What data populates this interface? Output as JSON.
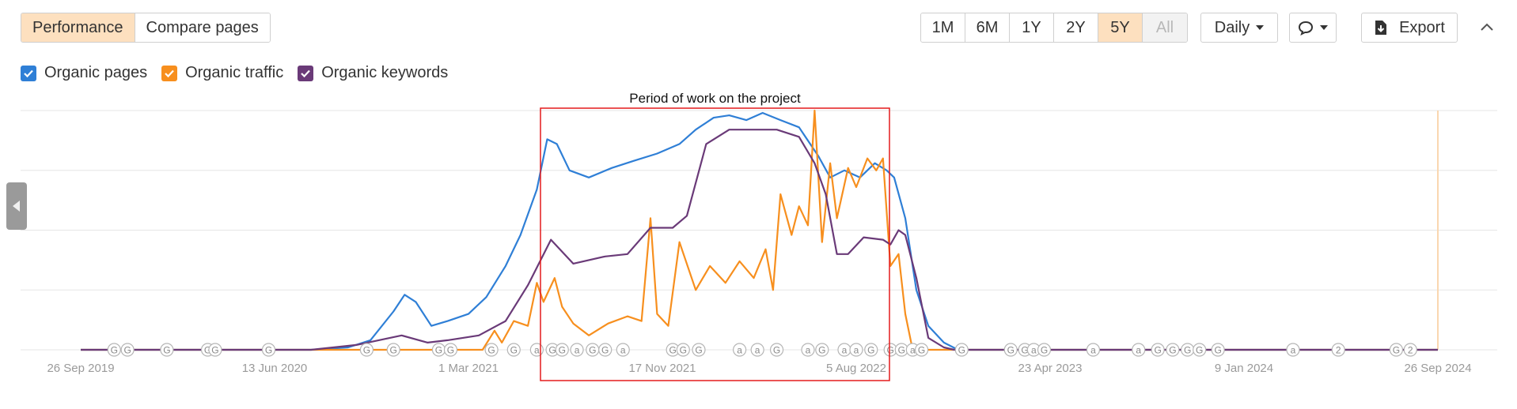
{
  "tabs": [
    {
      "label": "Performance",
      "active": true
    },
    {
      "label": "Compare pages",
      "active": false
    }
  ],
  "ranges": [
    {
      "label": "1M",
      "state": "normal"
    },
    {
      "label": "6M",
      "state": "normal"
    },
    {
      "label": "1Y",
      "state": "normal"
    },
    {
      "label": "2Y",
      "state": "normal"
    },
    {
      "label": "5Y",
      "state": "active"
    },
    {
      "label": "All",
      "state": "disabled"
    }
  ],
  "toolbar": {
    "interval_label": "Daily",
    "export_label": "Export",
    "comment_icon": "speech-bubble-icon",
    "export_icon": "download-icon",
    "collapse_icon": "chevron-up-icon"
  },
  "legend": [
    {
      "label": "Organic pages",
      "color": "#2f7fd6",
      "checked": true
    },
    {
      "label": "Organic traffic",
      "color": "#f78f1e",
      "checked": true
    },
    {
      "label": "Organic keywords",
      "color": "#6a3a78",
      "checked": true
    }
  ],
  "annotation": {
    "label": "Period of work on the project",
    "color": "#e41a1c",
    "from": "2021-04-10",
    "to": "2022-08-20"
  },
  "colors": {
    "accent_bg": "#fde0bf",
    "selection_box": "#e41a1c",
    "grid": "#e6e6e6"
  },
  "chart_data": {
    "type": "line",
    "x_ticks": [
      "26 Sep 2019",
      "13 Jun 2020",
      "1 Mar 2021",
      "17 Nov 2021",
      "5 Aug 2022",
      "23 Apr 2023",
      "9 Jan 2024",
      "26 Sep 2024"
    ],
    "x_range": [
      "2019-09-26",
      "2024-09-26"
    ],
    "y_range": [
      0,
      100
    ],
    "y_axis_labels_visible": false,
    "grid": "horizontal",
    "legend_position": "top-left",
    "series": [
      {
        "name": "Organic pages",
        "color": "#2f7fd6",
        "points": [
          [
            "2019-09-26",
            0
          ],
          [
            "2020-08-01",
            0
          ],
          [
            "2020-09-20",
            1
          ],
          [
            "2020-10-20",
            4
          ],
          [
            "2020-11-20",
            16
          ],
          [
            "2020-12-05",
            23
          ],
          [
            "2020-12-20",
            20
          ],
          [
            "2021-01-10",
            10
          ],
          [
            "2021-02-01",
            12
          ],
          [
            "2021-03-01",
            15
          ],
          [
            "2021-03-25",
            22
          ],
          [
            "2021-04-20",
            35
          ],
          [
            "2021-05-10",
            48
          ],
          [
            "2021-06-01",
            67
          ],
          [
            "2021-06-15",
            88
          ],
          [
            "2021-06-28",
            86
          ],
          [
            "2021-07-15",
            75
          ],
          [
            "2021-08-10",
            72
          ],
          [
            "2021-09-10",
            76
          ],
          [
            "2021-10-10",
            79
          ],
          [
            "2021-11-10",
            82
          ],
          [
            "2021-12-10",
            86
          ],
          [
            "2022-01-01",
            92
          ],
          [
            "2022-01-25",
            97
          ],
          [
            "2022-02-15",
            98
          ],
          [
            "2022-03-10",
            96
          ],
          [
            "2022-04-01",
            99
          ],
          [
            "2022-04-25",
            96
          ],
          [
            "2022-05-20",
            93
          ],
          [
            "2022-06-15",
            81
          ],
          [
            "2022-07-01",
            72
          ],
          [
            "2022-07-20",
            75
          ],
          [
            "2022-08-10",
            72
          ],
          [
            "2022-08-30",
            78
          ],
          [
            "2022-09-15",
            75
          ],
          [
            "2022-09-25",
            72
          ],
          [
            "2022-10-10",
            55
          ],
          [
            "2022-10-25",
            25
          ],
          [
            "2022-11-10",
            10
          ],
          [
            "2022-12-01",
            3
          ],
          [
            "2022-12-20",
            0
          ],
          [
            "2024-09-26",
            0
          ]
        ]
      },
      {
        "name": "Organic traffic",
        "color": "#f78f1e",
        "points": [
          [
            "2019-09-26",
            0
          ],
          [
            "2021-03-20",
            0
          ],
          [
            "2021-04-05",
            8
          ],
          [
            "2021-04-15",
            3
          ],
          [
            "2021-05-01",
            12
          ],
          [
            "2021-05-20",
            10
          ],
          [
            "2021-06-01",
            28
          ],
          [
            "2021-06-10",
            20
          ],
          [
            "2021-06-25",
            30
          ],
          [
            "2021-07-05",
            18
          ],
          [
            "2021-07-20",
            11
          ],
          [
            "2021-08-10",
            6
          ],
          [
            "2021-09-05",
            11
          ],
          [
            "2021-10-01",
            14
          ],
          [
            "2021-10-20",
            12
          ],
          [
            "2021-11-01",
            55
          ],
          [
            "2021-11-10",
            15
          ],
          [
            "2021-11-25",
            10
          ],
          [
            "2021-12-10",
            45
          ],
          [
            "2022-01-01",
            25
          ],
          [
            "2022-01-20",
            35
          ],
          [
            "2022-02-10",
            28
          ],
          [
            "2022-03-01",
            37
          ],
          [
            "2022-03-20",
            30
          ],
          [
            "2022-04-05",
            42
          ],
          [
            "2022-04-15",
            25
          ],
          [
            "2022-04-25",
            65
          ],
          [
            "2022-05-10",
            48
          ],
          [
            "2022-05-20",
            60
          ],
          [
            "2022-06-01",
            52
          ],
          [
            "2022-06-10",
            100
          ],
          [
            "2022-06-20",
            45
          ],
          [
            "2022-07-01",
            78
          ],
          [
            "2022-07-10",
            55
          ],
          [
            "2022-07-25",
            76
          ],
          [
            "2022-08-05",
            68
          ],
          [
            "2022-08-20",
            80
          ],
          [
            "2022-09-01",
            75
          ],
          [
            "2022-09-10",
            80
          ],
          [
            "2022-09-20",
            35
          ],
          [
            "2022-10-01",
            40
          ],
          [
            "2022-10-10",
            15
          ],
          [
            "2022-10-20",
            0
          ],
          [
            "2024-09-26",
            0
          ]
        ]
      },
      {
        "name": "Organic keywords",
        "color": "#6a3a78",
        "points": [
          [
            "2019-09-26",
            0
          ],
          [
            "2020-08-01",
            0
          ],
          [
            "2020-10-01",
            2
          ],
          [
            "2020-12-01",
            6
          ],
          [
            "2021-01-05",
            3
          ],
          [
            "2021-02-01",
            4
          ],
          [
            "2021-03-15",
            6
          ],
          [
            "2021-04-20",
            12
          ],
          [
            "2021-05-20",
            27
          ],
          [
            "2021-06-20",
            46
          ],
          [
            "2021-07-20",
            36
          ],
          [
            "2021-09-01",
            39
          ],
          [
            "2021-10-01",
            40
          ],
          [
            "2021-11-01",
            51
          ],
          [
            "2021-12-01",
            51
          ],
          [
            "2021-12-20",
            56
          ],
          [
            "2022-01-15",
            86
          ],
          [
            "2022-02-15",
            92
          ],
          [
            "2022-03-20",
            92
          ],
          [
            "2022-04-20",
            92
          ],
          [
            "2022-05-20",
            89
          ],
          [
            "2022-06-10",
            78
          ],
          [
            "2022-06-25",
            65
          ],
          [
            "2022-07-10",
            40
          ],
          [
            "2022-07-25",
            40
          ],
          [
            "2022-08-15",
            47
          ],
          [
            "2022-09-10",
            46
          ],
          [
            "2022-09-20",
            44
          ],
          [
            "2022-10-01",
            50
          ],
          [
            "2022-10-10",
            48
          ],
          [
            "2022-10-25",
            30
          ],
          [
            "2022-11-10",
            5
          ],
          [
            "2022-12-01",
            1
          ],
          [
            "2022-12-15",
            0
          ],
          [
            "2024-09-26",
            0
          ]
        ]
      }
    ],
    "event_markers": [
      {
        "date": "2019-11-10",
        "label": "G"
      },
      {
        "date": "2019-11-28",
        "label": "G"
      },
      {
        "date": "2020-01-20",
        "label": "G"
      },
      {
        "date": "2020-03-15",
        "label": "G"
      },
      {
        "date": "2020-03-25",
        "label": "G"
      },
      {
        "date": "2020-06-05",
        "label": "G"
      },
      {
        "date": "2020-10-15",
        "label": "G"
      },
      {
        "date": "2020-11-20",
        "label": "G"
      },
      {
        "date": "2021-01-20",
        "label": "G"
      },
      {
        "date": "2021-02-05",
        "label": "G"
      },
      {
        "date": "2021-04-01",
        "label": "G"
      },
      {
        "date": "2021-05-01",
        "label": "G"
      },
      {
        "date": "2021-06-01",
        "label": "a"
      },
      {
        "date": "2021-06-22",
        "label": "G"
      },
      {
        "date": "2021-07-05",
        "label": "G"
      },
      {
        "date": "2021-07-25",
        "label": "a"
      },
      {
        "date": "2021-08-15",
        "label": "G"
      },
      {
        "date": "2021-09-01",
        "label": "G"
      },
      {
        "date": "2021-09-25",
        "label": "a"
      },
      {
        "date": "2021-12-01",
        "label": "G"
      },
      {
        "date": "2021-12-15",
        "label": "G"
      },
      {
        "date": "2022-01-05",
        "label": "G"
      },
      {
        "date": "2022-03-01",
        "label": "a"
      },
      {
        "date": "2022-03-25",
        "label": "a"
      },
      {
        "date": "2022-04-20",
        "label": "G"
      },
      {
        "date": "2022-06-01",
        "label": "a"
      },
      {
        "date": "2022-06-20",
        "label": "G"
      },
      {
        "date": "2022-07-20",
        "label": "a"
      },
      {
        "date": "2022-08-05",
        "label": "a"
      },
      {
        "date": "2022-08-25",
        "label": "G"
      },
      {
        "date": "2022-09-20",
        "label": "G"
      },
      {
        "date": "2022-10-05",
        "label": "G"
      },
      {
        "date": "2022-10-20",
        "label": "a"
      },
      {
        "date": "2022-11-01",
        "label": "G"
      },
      {
        "date": "2022-12-25",
        "label": "G"
      },
      {
        "date": "2023-03-01",
        "label": "G"
      },
      {
        "date": "2023-03-20",
        "label": "G"
      },
      {
        "date": "2023-04-01",
        "label": "a"
      },
      {
        "date": "2023-04-15",
        "label": "G"
      },
      {
        "date": "2023-06-20",
        "label": "a"
      },
      {
        "date": "2023-08-20",
        "label": "a"
      },
      {
        "date": "2023-09-15",
        "label": "G"
      },
      {
        "date": "2023-10-05",
        "label": "G"
      },
      {
        "date": "2023-10-25",
        "label": "G"
      },
      {
        "date": "2023-11-10",
        "label": "G"
      },
      {
        "date": "2023-12-05",
        "label": "G"
      },
      {
        "date": "2024-03-15",
        "label": "a"
      },
      {
        "date": "2024-05-15",
        "label": "2"
      },
      {
        "date": "2024-08-01",
        "label": "G"
      },
      {
        "date": "2024-08-20",
        "label": "2"
      }
    ]
  }
}
